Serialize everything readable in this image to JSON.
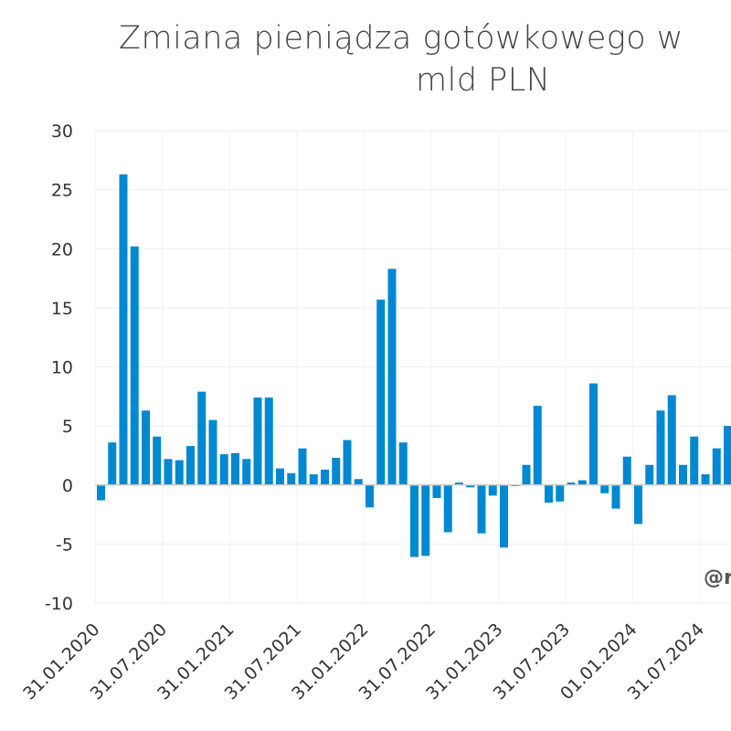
{
  "chart_data": {
    "type": "bar",
    "title_line1": "Zmiana pieniądza gotówkowego w",
    "title_line2": "mld PLN",
    "watermark": "@r",
    "bar_color": "#0088d1",
    "grid": true,
    "ylim": [
      -10,
      30
    ],
    "yticks": [
      30,
      25,
      20,
      15,
      10,
      5,
      0,
      -5,
      -10
    ],
    "xtick_labels": [
      "31.01.2020",
      "31.07.2020",
      "31.01.2021",
      "31.07.2021",
      "31.01.2022",
      "31.07.2022",
      "31.01.2023",
      "31.07.2023",
      "01.01.2024",
      "31.07.2024",
      "31.0"
    ],
    "values": [
      -1.3,
      3.6,
      26.3,
      20.2,
      6.3,
      4.1,
      2.2,
      2.1,
      3.3,
      7.9,
      5.5,
      2.6,
      2.7,
      2.2,
      7.4,
      7.4,
      1.4,
      1.0,
      3.1,
      0.9,
      1.3,
      2.3,
      3.8,
      0.5,
      -1.9,
      15.7,
      18.3,
      3.6,
      -6.1,
      -6.0,
      -1.1,
      -4.0,
      0.2,
      -0.2,
      -4.1,
      -0.9,
      -5.3,
      -0.1,
      1.7,
      6.7,
      -1.5,
      -1.4,
      0.2,
      0.4,
      8.6,
      -0.7,
      -2.0,
      2.4,
      -3.3,
      1.7,
      6.3,
      7.6,
      1.7,
      4.1,
      0.9,
      3.1,
      5.0
    ]
  }
}
